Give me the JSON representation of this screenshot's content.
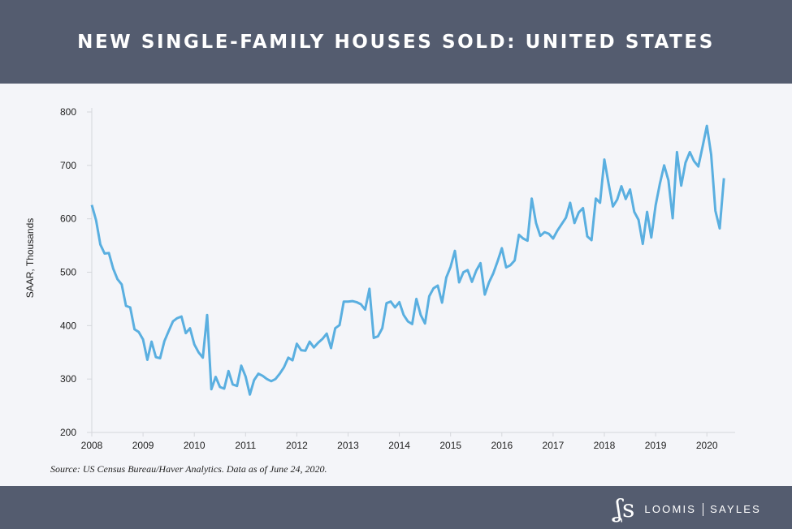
{
  "header": {
    "title": "NEW SINGLE-FAMILY HOUSES SOLD: UNITED STATES"
  },
  "footer": {
    "source": "Source: US Census Bureau/Haver Analytics. Data as of  June 24, 2020.",
    "logo_mark": "LS",
    "logo_left": "LOOMIS",
    "logo_right": "SAYLES"
  },
  "colors": {
    "header": "#545c6f",
    "line": "#5aafe0",
    "background": "#f4f5f9"
  },
  "chart_data": {
    "type": "line",
    "title": "NEW SINGLE-FAMILY HOUSES SOLD: UNITED STATES",
    "xlabel": "",
    "ylabel": "SAAR, Thousands",
    "ylim": [
      200,
      800
    ],
    "yticks": [
      200,
      300,
      400,
      500,
      600,
      700,
      800
    ],
    "xticks": [
      "2008",
      "2009",
      "2010",
      "2011",
      "2012",
      "2013",
      "2014",
      "2015",
      "2016",
      "2017",
      "2018",
      "2019",
      "2020"
    ],
    "x_start": "2008-01",
    "frequency": "monthly",
    "x_end": "2020-05",
    "grid": false,
    "values": [
      626,
      597,
      552,
      535,
      536,
      507,
      487,
      477,
      437,
      434,
      393,
      388,
      374,
      336,
      370,
      341,
      339,
      371,
      390,
      408,
      414,
      417,
      386,
      395,
      365,
      350,
      340,
      420,
      281,
      304,
      285,
      282,
      315,
      290,
      287,
      325,
      305,
      271,
      298,
      310,
      306,
      300,
      296,
      300,
      310,
      322,
      340,
      335,
      366,
      354,
      353,
      370,
      359,
      368,
      375,
      385,
      358,
      395,
      401,
      445,
      445,
      446,
      444,
      440,
      430,
      469,
      377,
      380,
      395,
      442,
      445,
      434,
      444,
      420,
      408,
      403,
      450,
      420,
      404,
      455,
      470,
      475,
      443,
      490,
      510,
      540,
      481,
      500,
      504,
      482,
      503,
      517,
      458,
      481,
      498,
      520,
      545,
      509,
      513,
      522,
      570,
      563,
      559,
      638,
      592,
      568,
      575,
      572,
      563,
      578,
      590,
      602,
      630,
      592,
      612,
      620,
      567,
      560,
      638,
      630,
      711,
      665,
      623,
      636,
      661,
      637,
      655,
      613,
      598,
      553,
      613,
      565,
      625,
      666,
      700,
      672,
      601,
      725,
      662,
      705,
      725,
      708,
      698,
      735,
      774,
      720,
      615,
      582,
      676
    ]
  }
}
